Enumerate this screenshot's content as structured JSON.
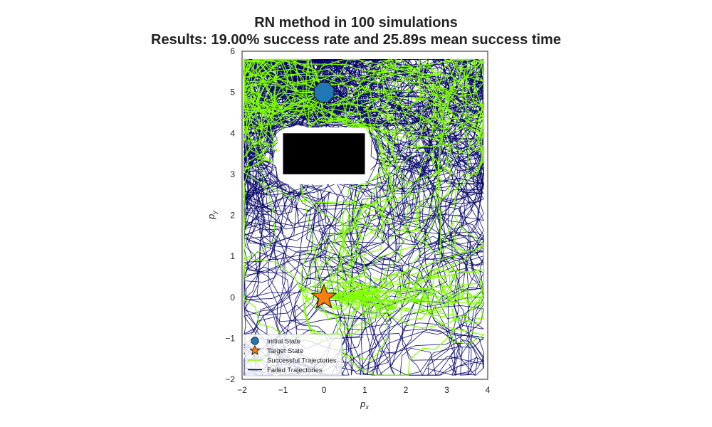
{
  "chart_data": {
    "type": "scatter",
    "title_lines": [
      "RN method in 100 simulations",
      "Results: 19.00% success rate and 25.89s mean success time"
    ],
    "xlabel_base": "p",
    "xlabel_sub": "x",
    "ylabel_base": "p",
    "ylabel_sub": "y",
    "xlim": [
      -2,
      4
    ],
    "ylim": [
      -2,
      6
    ],
    "xticks": [
      -2,
      -1,
      0,
      1,
      2,
      3,
      4
    ],
    "yticks": [
      -2,
      -1,
      0,
      1,
      2,
      3,
      4,
      5,
      6
    ],
    "grid": false,
    "obstacle": {
      "x_min": -1,
      "x_max": 1,
      "y_min": 3,
      "y_max": 4,
      "color": "#000000"
    },
    "initial_state": {
      "x": 0,
      "y": 5,
      "marker": "octagon",
      "color": "#1f77b4"
    },
    "target_state": {
      "x": 0,
      "y": 0,
      "marker": "star",
      "color": "#ff7f0e"
    },
    "series": [
      {
        "name": "Successful Trajectories",
        "color": "#7fff00",
        "count": 19
      },
      {
        "name": "Failed Trajectories",
        "color": "#000066",
        "count": 81
      }
    ],
    "legend": {
      "position": "lower-left",
      "entries": [
        "Initial State",
        "Target State",
        "Successful Trajectories",
        "Failed Trajectories"
      ]
    }
  }
}
